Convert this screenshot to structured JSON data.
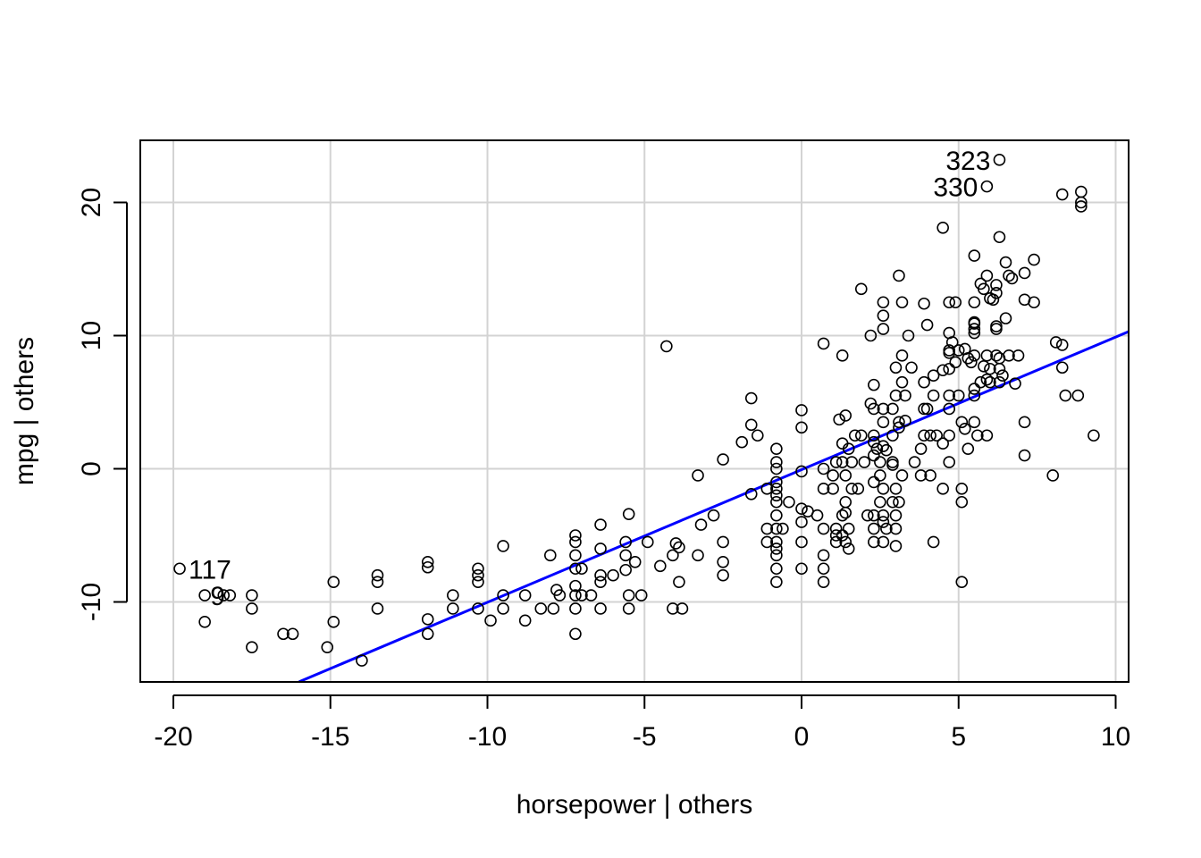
{
  "chart_data": {
    "type": "scatter",
    "title": "",
    "xlabel": "horsepower | others",
    "ylabel": "mpg  | others",
    "xlim": [
      -21,
      10.5
    ],
    "ylim": [
      -16,
      24.5
    ],
    "xticks": [
      -20,
      -15,
      -10,
      -5,
      0,
      5,
      10
    ],
    "yticks": [
      -10,
      0,
      10,
      20
    ],
    "grid": true,
    "point_color": "#000000",
    "fit_line": {
      "color": "#0000ff",
      "x": [
        -16.0,
        10.5
      ],
      "y": [
        -16.0,
        10.3
      ]
    },
    "labeled_points": [
      {
        "label": "323",
        "x": 6.3,
        "y": 23.2
      },
      {
        "label": "330",
        "x": 5.9,
        "y": 21.2
      },
      {
        "label": "117",
        "x": -19.8,
        "y": -7.5
      },
      {
        "label": "9",
        "x": -18.4,
        "y": -9.5
      }
    ],
    "points": [
      [
        6.3,
        23.2
      ],
      [
        5.9,
        21.2
      ],
      [
        8.3,
        20.6
      ],
      [
        8.9,
        20.8
      ],
      [
        8.9,
        19.7
      ],
      [
        8.9,
        20.0
      ],
      [
        4.5,
        18.1
      ],
      [
        6.3,
        17.4
      ],
      [
        5.5,
        16.0
      ],
      [
        7.4,
        15.7
      ],
      [
        6.5,
        15.5
      ],
      [
        3.1,
        14.5
      ],
      [
        5.9,
        14.5
      ],
      [
        7.1,
        14.7
      ],
      [
        6.7,
        14.3
      ],
      [
        6.6,
        14.5
      ],
      [
        5.7,
        13.9
      ],
      [
        6.2,
        13.8
      ],
      [
        5.8,
        13.5
      ],
      [
        6.2,
        13.2
      ],
      [
        6.0,
        12.8
      ],
      [
        6.1,
        12.7
      ],
      [
        7.1,
        12.7
      ],
      [
        7.4,
        12.5
      ],
      [
        1.9,
        13.5
      ],
      [
        2.6,
        12.5
      ],
      [
        3.2,
        12.5
      ],
      [
        3.9,
        12.4
      ],
      [
        4.7,
        12.5
      ],
      [
        4.9,
        12.5
      ],
      [
        5.5,
        12.5
      ],
      [
        2.6,
        11.5
      ],
      [
        6.5,
        11.3
      ],
      [
        5.5,
        11.0
      ],
      [
        5.5,
        10.9
      ],
      [
        6.2,
        10.7
      ],
      [
        5.5,
        10.5
      ],
      [
        6.2,
        10.5
      ],
      [
        5.5,
        10.2
      ],
      [
        4.7,
        10.2
      ],
      [
        2.2,
        10.0
      ],
      [
        2.6,
        10.5
      ],
      [
        3.4,
        10.0
      ],
      [
        4.0,
        10.8
      ],
      [
        4.8,
        9.5
      ],
      [
        0.7,
        9.4
      ],
      [
        -4.3,
        9.2
      ],
      [
        8.1,
        9.5
      ],
      [
        8.3,
        9.3
      ],
      [
        5.0,
        8.9
      ],
      [
        5.2,
        9.0
      ],
      [
        4.7,
        8.7
      ],
      [
        4.7,
        8.9
      ],
      [
        5.9,
        8.5
      ],
      [
        6.2,
        8.5
      ],
      [
        6.6,
        8.5
      ],
      [
        6.3,
        8.3
      ],
      [
        5.5,
        8.5
      ],
      [
        5.3,
        8.3
      ],
      [
        5.4,
        8.0
      ],
      [
        6.9,
        8.5
      ],
      [
        1.3,
        8.5
      ],
      [
        3.2,
        8.5
      ],
      [
        4.7,
        7.5
      ],
      [
        4.5,
        7.4
      ],
      [
        4.2,
        7.0
      ],
      [
        4.9,
        8.0
      ],
      [
        5.8,
        7.7
      ],
      [
        6.0,
        7.5
      ],
      [
        6.3,
        7.5
      ],
      [
        8.3,
        7.6
      ],
      [
        3.0,
        7.6
      ],
      [
        3.5,
        7.6
      ],
      [
        6.8,
        6.4
      ],
      [
        6.4,
        7.0
      ],
      [
        5.7,
        6.5
      ],
      [
        5.9,
        6.7
      ],
      [
        6.0,
        6.5
      ],
      [
        6.3,
        6.5
      ],
      [
        3.2,
        6.5
      ],
      [
        3.9,
        6.5
      ],
      [
        2.3,
        6.3
      ],
      [
        5.5,
        5.5
      ],
      [
        5.5,
        6.0
      ],
      [
        3.0,
        5.5
      ],
      [
        3.3,
        5.5
      ],
      [
        4.2,
        5.5
      ],
      [
        4.7,
        5.5
      ],
      [
        5.0,
        5.5
      ],
      [
        8.4,
        5.5
      ],
      [
        8.8,
        5.5
      ],
      [
        -1.6,
        5.3
      ],
      [
        2.2,
        4.9
      ],
      [
        2.3,
        4.5
      ],
      [
        2.6,
        4.5
      ],
      [
        2.9,
        4.5
      ],
      [
        3.9,
        4.5
      ],
      [
        4.0,
        4.5
      ],
      [
        4.7,
        4.5
      ],
      [
        0.0,
        4.4
      ],
      [
        1.4,
        4.0
      ],
      [
        1.2,
        3.7
      ],
      [
        3.3,
        3.6
      ],
      [
        2.6,
        3.5
      ],
      [
        3.1,
        3.5
      ],
      [
        5.1,
        3.5
      ],
      [
        5.5,
        3.5
      ],
      [
        7.1,
        3.5
      ],
      [
        -1.6,
        3.3
      ],
      [
        0.0,
        3.1
      ],
      [
        3.1,
        3.1
      ],
      [
        5.2,
        3.0
      ],
      [
        5.6,
        2.5
      ],
      [
        -1.4,
        2.5
      ],
      [
        1.7,
        2.5
      ],
      [
        1.9,
        2.5
      ],
      [
        2.3,
        2.5
      ],
      [
        2.9,
        2.5
      ],
      [
        3.9,
        2.5
      ],
      [
        4.1,
        2.5
      ],
      [
        4.3,
        2.5
      ],
      [
        4.7,
        2.5
      ],
      [
        5.9,
        2.5
      ],
      [
        9.3,
        2.5
      ],
      [
        -1.9,
        2.0
      ],
      [
        1.3,
        1.9
      ],
      [
        2.3,
        2.0
      ],
      [
        3.8,
        1.5
      ],
      [
        4.5,
        1.9
      ],
      [
        5.3,
        1.5
      ],
      [
        -0.8,
        1.5
      ],
      [
        1.5,
        1.5
      ],
      [
        2.6,
        1.7
      ],
      [
        2.4,
        1.5
      ],
      [
        2.7,
        1.4
      ],
      [
        2.3,
        1.0
      ],
      [
        7.1,
        1.0
      ],
      [
        -2.5,
        0.7
      ],
      [
        -0.8,
        0.5
      ],
      [
        1.1,
        0.5
      ],
      [
        1.3,
        0.5
      ],
      [
        1.6,
        0.5
      ],
      [
        2.0,
        0.5
      ],
      [
        2.5,
        0.5
      ],
      [
        2.9,
        0.5
      ],
      [
        3.6,
        0.5
      ],
      [
        4.7,
        0.5
      ],
      [
        -0.8,
        0.0
      ],
      [
        0.7,
        0.0
      ],
      [
        2.9,
        0.3
      ],
      [
        1.0,
        -0.5
      ],
      [
        1.4,
        -0.5
      ],
      [
        2.5,
        -0.5
      ],
      [
        3.2,
        -0.5
      ],
      [
        3.8,
        -0.5
      ],
      [
        4.1,
        -0.5
      ],
      [
        8.0,
        -0.5
      ],
      [
        -3.3,
        -0.5
      ],
      [
        0.0,
        -0.2
      ],
      [
        -1.1,
        -1.5
      ],
      [
        -1.6,
        -1.9
      ],
      [
        -0.8,
        -1.0
      ],
      [
        -0.8,
        -1.5
      ],
      [
        0.7,
        -1.5
      ],
      [
        1.0,
        -1.5
      ],
      [
        1.6,
        -1.5
      ],
      [
        1.8,
        -1.5
      ],
      [
        2.3,
        -1.0
      ],
      [
        2.6,
        -1.5
      ],
      [
        3.0,
        -1.5
      ],
      [
        4.5,
        -1.5
      ],
      [
        5.1,
        -1.5
      ],
      [
        -0.8,
        -2.0
      ],
      [
        -0.4,
        -2.5
      ],
      [
        -0.8,
        -2.5
      ],
      [
        1.4,
        -2.5
      ],
      [
        2.5,
        -2.5
      ],
      [
        3.1,
        -2.5
      ],
      [
        2.9,
        -2.5
      ],
      [
        5.1,
        -2.5
      ],
      [
        0.0,
        -3.0
      ],
      [
        0.2,
        -3.2
      ],
      [
        -0.8,
        -3.5
      ],
      [
        -2.8,
        -3.5
      ],
      [
        0.5,
        -3.5
      ],
      [
        1.3,
        -3.5
      ],
      [
        1.4,
        -3.3
      ],
      [
        2.1,
        -3.5
      ],
      [
        2.3,
        -3.5
      ],
      [
        2.6,
        -3.5
      ],
      [
        3.0,
        -3.5
      ],
      [
        2.6,
        -4.0
      ],
      [
        -0.8,
        -4.5
      ],
      [
        -1.1,
        -4.5
      ],
      [
        0.0,
        -4.0
      ],
      [
        0.7,
        -4.5
      ],
      [
        1.1,
        -4.5
      ],
      [
        1.5,
        -4.5
      ],
      [
        2.3,
        -4.5
      ],
      [
        2.7,
        -4.5
      ],
      [
        3.0,
        -4.5
      ],
      [
        -3.2,
        -4.2
      ],
      [
        -6.4,
        -4.2
      ],
      [
        -7.2,
        -5.0
      ],
      [
        -5.5,
        -3.4
      ],
      [
        -0.6,
        -4.5
      ],
      [
        1.3,
        -5.0
      ],
      [
        1.1,
        -5.0
      ],
      [
        -0.8,
        -5.5
      ],
      [
        -1.1,
        -5.5
      ],
      [
        0.0,
        -5.5
      ],
      [
        1.1,
        -5.5
      ],
      [
        1.4,
        -5.5
      ],
      [
        2.3,
        -5.5
      ],
      [
        2.6,
        -5.5
      ],
      [
        3.0,
        -5.8
      ],
      [
        4.2,
        -5.5
      ],
      [
        -2.5,
        -5.5
      ],
      [
        -5.6,
        -5.5
      ],
      [
        -4.9,
        -5.5
      ],
      [
        -7.2,
        -5.5
      ],
      [
        -6.4,
        -6.0
      ],
      [
        -9.5,
        -5.8
      ],
      [
        -3.9,
        -5.9
      ],
      [
        -4.0,
        -5.6
      ],
      [
        1.5,
        -6.0
      ],
      [
        -0.8,
        -6.0
      ],
      [
        -0.8,
        -6.5
      ],
      [
        0.7,
        -6.5
      ],
      [
        -4.1,
        -6.5
      ],
      [
        -3.3,
        -6.5
      ],
      [
        -7.2,
        -6.5
      ],
      [
        -8.0,
        -6.5
      ],
      [
        -5.6,
        -6.5
      ],
      [
        -0.8,
        -7.5
      ],
      [
        0.0,
        -7.5
      ],
      [
        0.7,
        -7.5
      ],
      [
        -2.5,
        -7.0
      ],
      [
        -4.5,
        -7.3
      ],
      [
        -5.3,
        -7.0
      ],
      [
        -7.2,
        -7.5
      ],
      [
        -7.0,
        -7.5
      ],
      [
        -5.6,
        -7.6
      ],
      [
        -6.4,
        -8.0
      ],
      [
        -6.0,
        -8.0
      ],
      [
        -2.5,
        -8.0
      ],
      [
        -10.3,
        -7.5
      ],
      [
        -10.3,
        -8.0
      ],
      [
        -11.9,
        -7.0
      ],
      [
        -11.9,
        -7.4
      ],
      [
        -13.5,
        -8.0
      ],
      [
        -13.5,
        -8.5
      ],
      [
        -14.9,
        -8.5
      ],
      [
        -0.8,
        -8.5
      ],
      [
        0.7,
        -8.5
      ],
      [
        5.1,
        -8.5
      ],
      [
        -3.9,
        -8.5
      ],
      [
        -6.4,
        -8.5
      ],
      [
        -7.2,
        -8.8
      ],
      [
        -10.3,
        -8.5
      ],
      [
        -7.2,
        -9.5
      ],
      [
        -7.0,
        -9.5
      ],
      [
        -7.7,
        -9.5
      ],
      [
        -6.7,
        -9.5
      ],
      [
        -5.5,
        -9.5
      ],
      [
        -5.1,
        -9.5
      ],
      [
        -8.8,
        -9.5
      ],
      [
        -7.8,
        -9.1
      ],
      [
        -9.5,
        -9.5
      ],
      [
        -11.1,
        -9.5
      ],
      [
        -17.5,
        -9.5
      ],
      [
        -18.2,
        -9.5
      ],
      [
        -19.0,
        -9.5
      ],
      [
        -17.5,
        -10.5
      ],
      [
        -13.5,
        -10.5
      ],
      [
        -11.1,
        -10.5
      ],
      [
        -10.3,
        -10.5
      ],
      [
        -9.5,
        -10.5
      ],
      [
        -8.3,
        -10.5
      ],
      [
        -7.9,
        -10.5
      ],
      [
        -7.2,
        -10.5
      ],
      [
        -6.4,
        -10.5
      ],
      [
        -5.5,
        -10.5
      ],
      [
        -4.1,
        -10.5
      ],
      [
        -3.8,
        -10.5
      ],
      [
        -11.9,
        -11.3
      ],
      [
        -14.9,
        -11.5
      ],
      [
        -19.0,
        -11.5
      ],
      [
        -8.8,
        -11.4
      ],
      [
        -9.9,
        -11.4
      ],
      [
        -11.9,
        -12.4
      ],
      [
        -7.2,
        -12.4
      ],
      [
        -16.5,
        -12.4
      ],
      [
        -16.2,
        -12.4
      ],
      [
        -17.5,
        -13.4
      ],
      [
        -15.1,
        -13.4
      ],
      [
        -14.0,
        -14.4
      ],
      [
        -19.8,
        -7.5
      ],
      [
        -18.4,
        -9.5
      ]
    ]
  }
}
